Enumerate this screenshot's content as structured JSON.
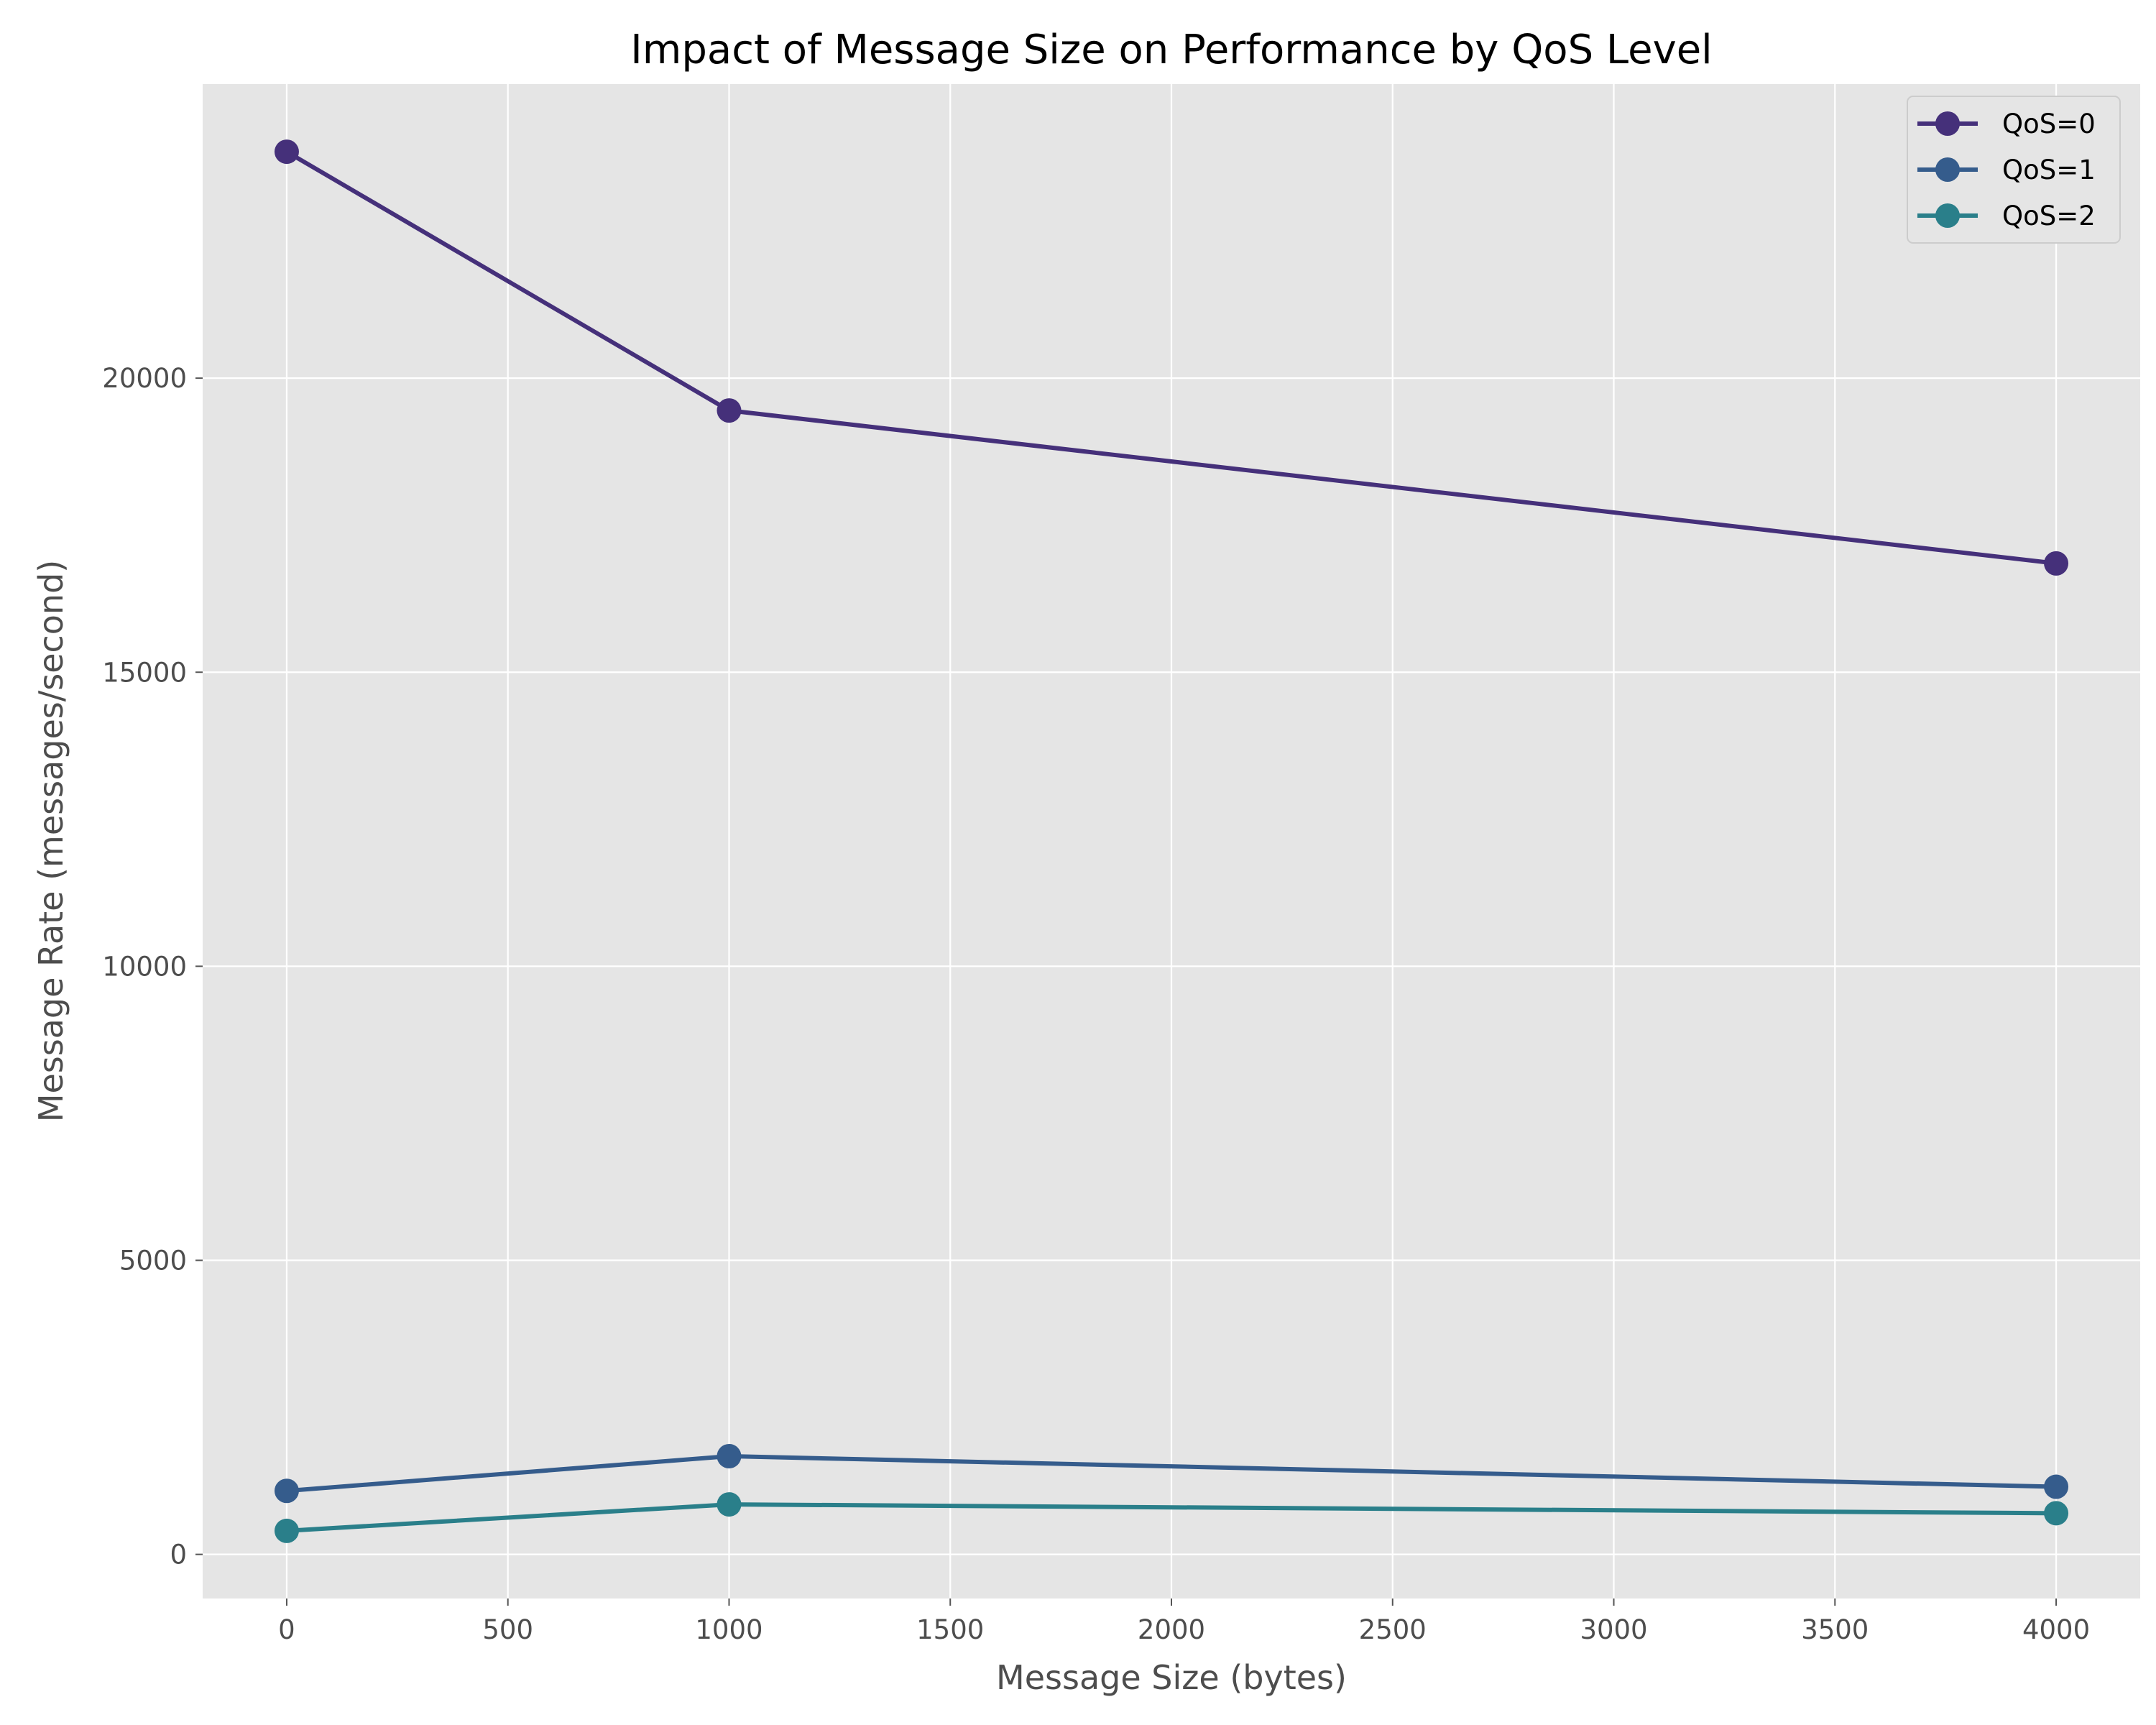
{
  "chart_data": {
    "type": "line",
    "title": "Impact of Message Size on Performance by QoS Level",
    "xlabel": "Message Size (bytes)",
    "ylabel": "Message Rate (messages/second)",
    "xlim": [
      -190,
      4190
    ],
    "ylim": [
      -750,
      25000
    ],
    "xticks": [
      0,
      500,
      1000,
      1500,
      2000,
      2500,
      3000,
      3500,
      4000
    ],
    "yticks": [
      0,
      5000,
      10000,
      15000,
      20000
    ],
    "grid": true,
    "legend_position": "top-right",
    "x": [
      0,
      1000,
      4000
    ],
    "series": [
      {
        "name": "QoS=0",
        "color": "#45307a",
        "values": [
          23850,
          19450,
          16850
        ]
      },
      {
        "name": "QoS=1",
        "color": "#355c8c",
        "values": [
          1080,
          1670,
          1150
        ]
      },
      {
        "name": "QoS=2",
        "color": "#2a7f8a",
        "values": [
          400,
          850,
          700
        ]
      }
    ]
  }
}
